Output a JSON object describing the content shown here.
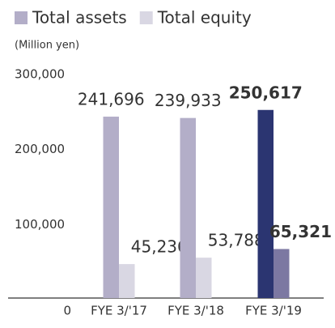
{
  "chart_data": {
    "type": "bar",
    "unit_label": "(Million yen)",
    "categories": [
      "FYE 3/'17",
      "FYE 3/'18",
      "FYE 3/'19"
    ],
    "series": [
      {
        "name": "Total assets",
        "color": "#b3aec8",
        "colors": [
          "#b3aec8",
          "#b3aec8",
          "#2b3571"
        ],
        "values": [
          241696,
          239933,
          250617
        ],
        "value_labels": [
          "241,696",
          "239,933",
          "250,617"
        ]
      },
      {
        "name": "Total equity",
        "color": "#d9d7e3",
        "colors": [
          "#d9d7e3",
          "#d9d7e3",
          "#7c78a2"
        ],
        "values": [
          45236,
          53788,
          65321
        ],
        "value_labels": [
          "45,236",
          "53,788",
          "65,321"
        ]
      }
    ],
    "highlight_index": 2,
    "ylim": [
      0,
      300000
    ],
    "yticks": [
      0,
      {
        "value": 100000,
        "label": "100,000"
      },
      {
        "value": 200000,
        "label": "200,000"
      },
      {
        "value": 300000,
        "label": "300,000"
      }
    ],
    "grid": false,
    "legend": "top-left"
  }
}
